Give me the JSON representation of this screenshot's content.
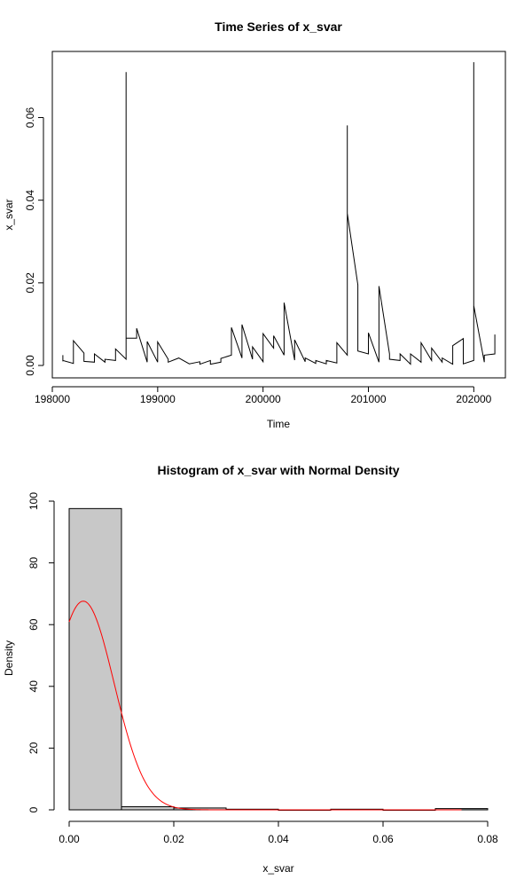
{
  "chart_data": [
    {
      "type": "line",
      "title": "Time Series of x_svar",
      "xlabel": "Time",
      "ylabel": "x_svar",
      "xlim": [
        198000,
        202300
      ],
      "ylim": [
        -0.003,
        0.076
      ],
      "xticks": [
        198000,
        199000,
        200000,
        201000,
        202000
      ],
      "xtick_labels": [
        "198000",
        "199000",
        "200000",
        "201000",
        "202000"
      ],
      "yticks": [
        0.0,
        0.02,
        0.04,
        0.06
      ],
      "ytick_labels": [
        "0.00",
        "0.02",
        "0.04",
        "0.06"
      ],
      "grid": false,
      "series": [
        {
          "color": "#000000",
          "x": [
            198100,
            198100,
            198100,
            198200,
            198200,
            198300,
            198300,
            198400,
            198400,
            198500,
            198500,
            198600,
            198600,
            198700,
            198700,
            198700,
            198800,
            198800,
            198900,
            198900,
            199000,
            199000,
            199100,
            199100,
            199200,
            199300,
            199400,
            199400,
            199500,
            199500,
            199600,
            199600,
            199700,
            199700,
            199800,
            199800,
            199900,
            199900,
            200000,
            200000,
            200100,
            200100,
            200200,
            200200,
            200300,
            200300,
            200400,
            200400,
            200500,
            200500,
            200600,
            200600,
            200700,
            200700,
            200800,
            200800,
            200800,
            200900,
            200900,
            201000,
            201000,
            201100,
            201100,
            201200,
            201200,
            201300,
            201300,
            201400,
            201400,
            201500,
            201500,
            201600,
            201600,
            201700,
            201700,
            201800,
            201800,
            201900,
            201900,
            202000,
            202000,
            202000,
            202100,
            202100,
            202200,
            202200
          ],
          "y": [
            0.0025,
            0.001,
            0.0012,
            0.0005,
            0.006,
            0.003,
            0.001,
            0.0008,
            0.0028,
            0.0008,
            0.0015,
            0.0012,
            0.004,
            0.0015,
            0.071,
            0.0066,
            0.0066,
            0.009,
            0.0008,
            0.0058,
            0.0008,
            0.0057,
            0.0015,
            0.0008,
            0.0018,
            0.0004,
            0.0009,
            0.0003,
            0.0012,
            0.0003,
            0.0008,
            0.0017,
            0.0025,
            0.0092,
            0.0018,
            0.0099,
            0.0015,
            0.0045,
            0.0009,
            0.0077,
            0.0042,
            0.0072,
            0.0025,
            0.0152,
            0.0013,
            0.0062,
            0.0009,
            0.0018,
            0.0005,
            0.0012,
            0.0004,
            0.0012,
            0.0006,
            0.0055,
            0.0025,
            0.0581,
            0.0368,
            0.0195,
            0.0035,
            0.0028,
            0.0079,
            0.0008,
            0.0192,
            0.0028,
            0.0015,
            0.0012,
            0.0028,
            0.0003,
            0.0028,
            0.0008,
            0.0055,
            0.0012,
            0.0042,
            0.0008,
            0.0018,
            0.0003,
            0.0048,
            0.0065,
            0.0004,
            0.0012,
            0.0734,
            0.0145,
            0.0008,
            0.0025,
            0.0028,
            0.0075
          ]
        }
      ]
    },
    {
      "type": "bar",
      "title": "Histogram of x_svar with Normal Density",
      "xlabel": "x_svar",
      "ylabel": "Density",
      "xlim": [
        0.0,
        0.08
      ],
      "ylim": [
        0,
        100
      ],
      "xticks": [
        0.0,
        0.02,
        0.04,
        0.06,
        0.08
      ],
      "xtick_labels": [
        "0.00",
        "0.02",
        "0.04",
        "0.06",
        "0.08"
      ],
      "yticks": [
        0,
        20,
        40,
        60,
        80,
        100
      ],
      "ytick_labels": [
        "0",
        "20",
        "40",
        "60",
        "80",
        "100"
      ],
      "grid": false,
      "bars": {
        "fill": "#c8c8c8",
        "bin_edges": [
          0.0,
          0.01,
          0.02,
          0.03,
          0.04,
          0.05,
          0.06,
          0.07,
          0.08
        ],
        "values": [
          97.6,
          1.0,
          0.6,
          0.2,
          0.0,
          0.2,
          0.0,
          0.4
        ]
      },
      "density_curve": {
        "color": "#ff0000",
        "mean": 0.0027,
        "sd": 0.0059,
        "x_range": [
          0.0,
          0.075
        ]
      }
    }
  ]
}
